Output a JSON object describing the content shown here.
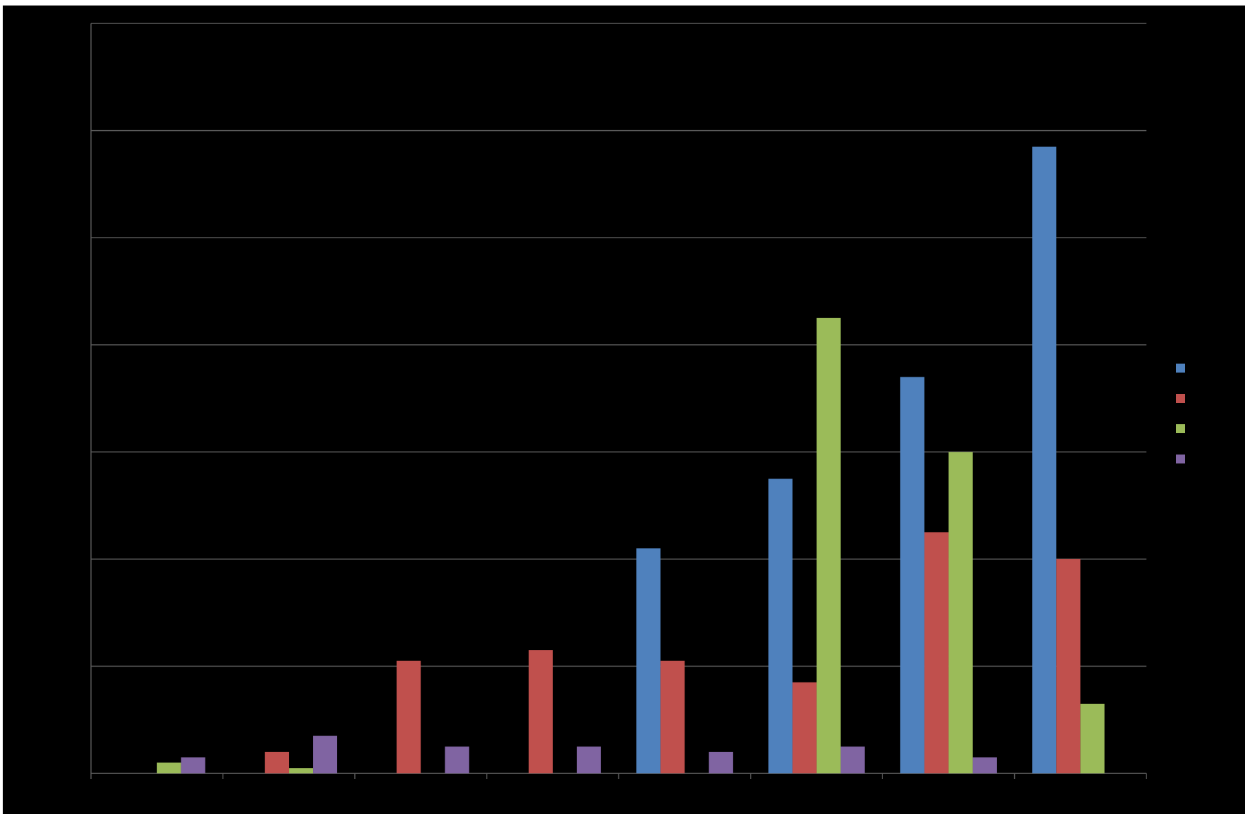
{
  "chart_data": {
    "type": "bar",
    "title": "",
    "xlabel": "",
    "ylabel": "",
    "ylim": [
      0,
      70
    ],
    "yticks": [
      0,
      10,
      20,
      30,
      40,
      50,
      60,
      70
    ],
    "categories": [
      "",
      "",
      "",
      "",
      "",
      "",
      "",
      ""
    ],
    "grid": true,
    "legend": "right",
    "background": "#000000",
    "gridline_color": "#5a5a5a",
    "series": [
      {
        "color": "#4f81bd",
        "values": [
          0,
          0,
          0,
          0,
          21,
          27.5,
          37,
          58.5
        ]
      },
      {
        "color": "#c0504d",
        "values": [
          0,
          2,
          10.5,
          11.5,
          10.5,
          8.5,
          22.5,
          20
        ]
      },
      {
        "color": "#9bbb59",
        "values": [
          1,
          0.5,
          0,
          0,
          0,
          42.5,
          30,
          6.5
        ]
      },
      {
        "color": "#8064a2",
        "values": [
          1.5,
          3.5,
          2.5,
          2.5,
          2,
          2.5,
          1.5,
          0
        ]
      }
    ]
  }
}
